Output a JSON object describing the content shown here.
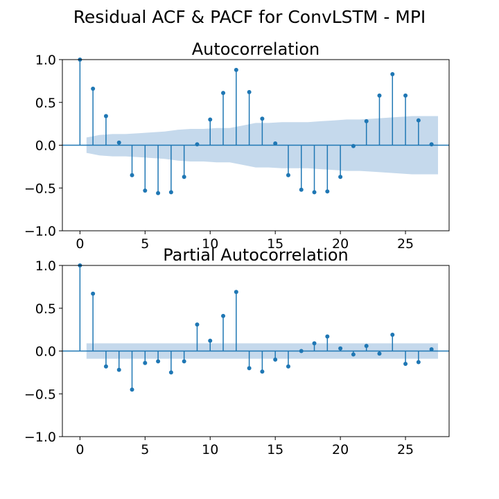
{
  "figure": {
    "suptitle": "Residual ACF & PACF for ConvLSTM - MPI"
  },
  "colors": {
    "stem": "#1f77b4",
    "band": "#c5d9ec",
    "axis": "#000000",
    "zero_line": "#1f77b4"
  },
  "chart_data": [
    {
      "type": "stem",
      "title": "Autocorrelation",
      "xlabel": "",
      "ylabel": "",
      "xlim": [
        -1.35,
        28.35
      ],
      "ylim": [
        -1.0,
        1.0
      ],
      "xticks": [
        0,
        5,
        10,
        15,
        20,
        25
      ],
      "yticks": [
        -1.0,
        -0.5,
        0.0,
        0.5,
        1.0
      ],
      "x": [
        0,
        1,
        2,
        3,
        4,
        5,
        6,
        7,
        8,
        9,
        10,
        11,
        12,
        13,
        14,
        15,
        16,
        17,
        18,
        19,
        20,
        21,
        22,
        23,
        24,
        25,
        26,
        27
      ],
      "values": [
        1.0,
        0.66,
        0.34,
        0.03,
        -0.35,
        -0.53,
        -0.56,
        -0.55,
        -0.37,
        0.01,
        0.3,
        0.61,
        0.88,
        0.62,
        0.31,
        0.02,
        -0.35,
        -0.52,
        -0.55,
        -0.54,
        -0.37,
        -0.01,
        0.28,
        0.58,
        0.83,
        0.58,
        0.29,
        0.01
      ],
      "confidence_band": [
        0.09,
        0.09,
        0.12,
        0.13,
        0.13,
        0.14,
        0.15,
        0.16,
        0.18,
        0.19,
        0.19,
        0.2,
        0.2,
        0.23,
        0.26,
        0.26,
        0.27,
        0.27,
        0.27,
        0.28,
        0.29,
        0.3,
        0.3,
        0.31,
        0.32,
        0.33,
        0.34,
        0.34
      ],
      "grid": false,
      "legend": "none"
    },
    {
      "type": "stem",
      "title": "Partial Autocorrelation",
      "xlabel": "",
      "ylabel": "",
      "xlim": [
        -1.35,
        28.35
      ],
      "ylim": [
        -1.0,
        1.0
      ],
      "xticks": [
        0,
        5,
        10,
        15,
        20,
        25
      ],
      "yticks": [
        -1.0,
        -0.5,
        0.0,
        0.5,
        1.0
      ],
      "x": [
        0,
        1,
        2,
        3,
        4,
        5,
        6,
        7,
        8,
        9,
        10,
        11,
        12,
        13,
        14,
        15,
        16,
        17,
        18,
        19,
        20,
        21,
        22,
        23,
        24,
        25,
        26,
        27
      ],
      "values": [
        1.0,
        0.67,
        -0.18,
        -0.22,
        -0.45,
        -0.14,
        -0.12,
        -0.25,
        -0.12,
        0.31,
        0.12,
        0.41,
        0.69,
        -0.2,
        -0.24,
        -0.1,
        -0.18,
        0.0,
        0.09,
        0.17,
        0.03,
        -0.04,
        0.06,
        -0.03,
        0.19,
        -0.15,
        -0.13,
        0.02
      ],
      "confidence_band": [
        0.09,
        0.09,
        0.09,
        0.09,
        0.09,
        0.09,
        0.09,
        0.09,
        0.09,
        0.09,
        0.09,
        0.09,
        0.09,
        0.09,
        0.09,
        0.09,
        0.09,
        0.09,
        0.09,
        0.09,
        0.09,
        0.09,
        0.09,
        0.09,
        0.09,
        0.09,
        0.09,
        0.09
      ],
      "grid": false,
      "legend": "none"
    }
  ]
}
